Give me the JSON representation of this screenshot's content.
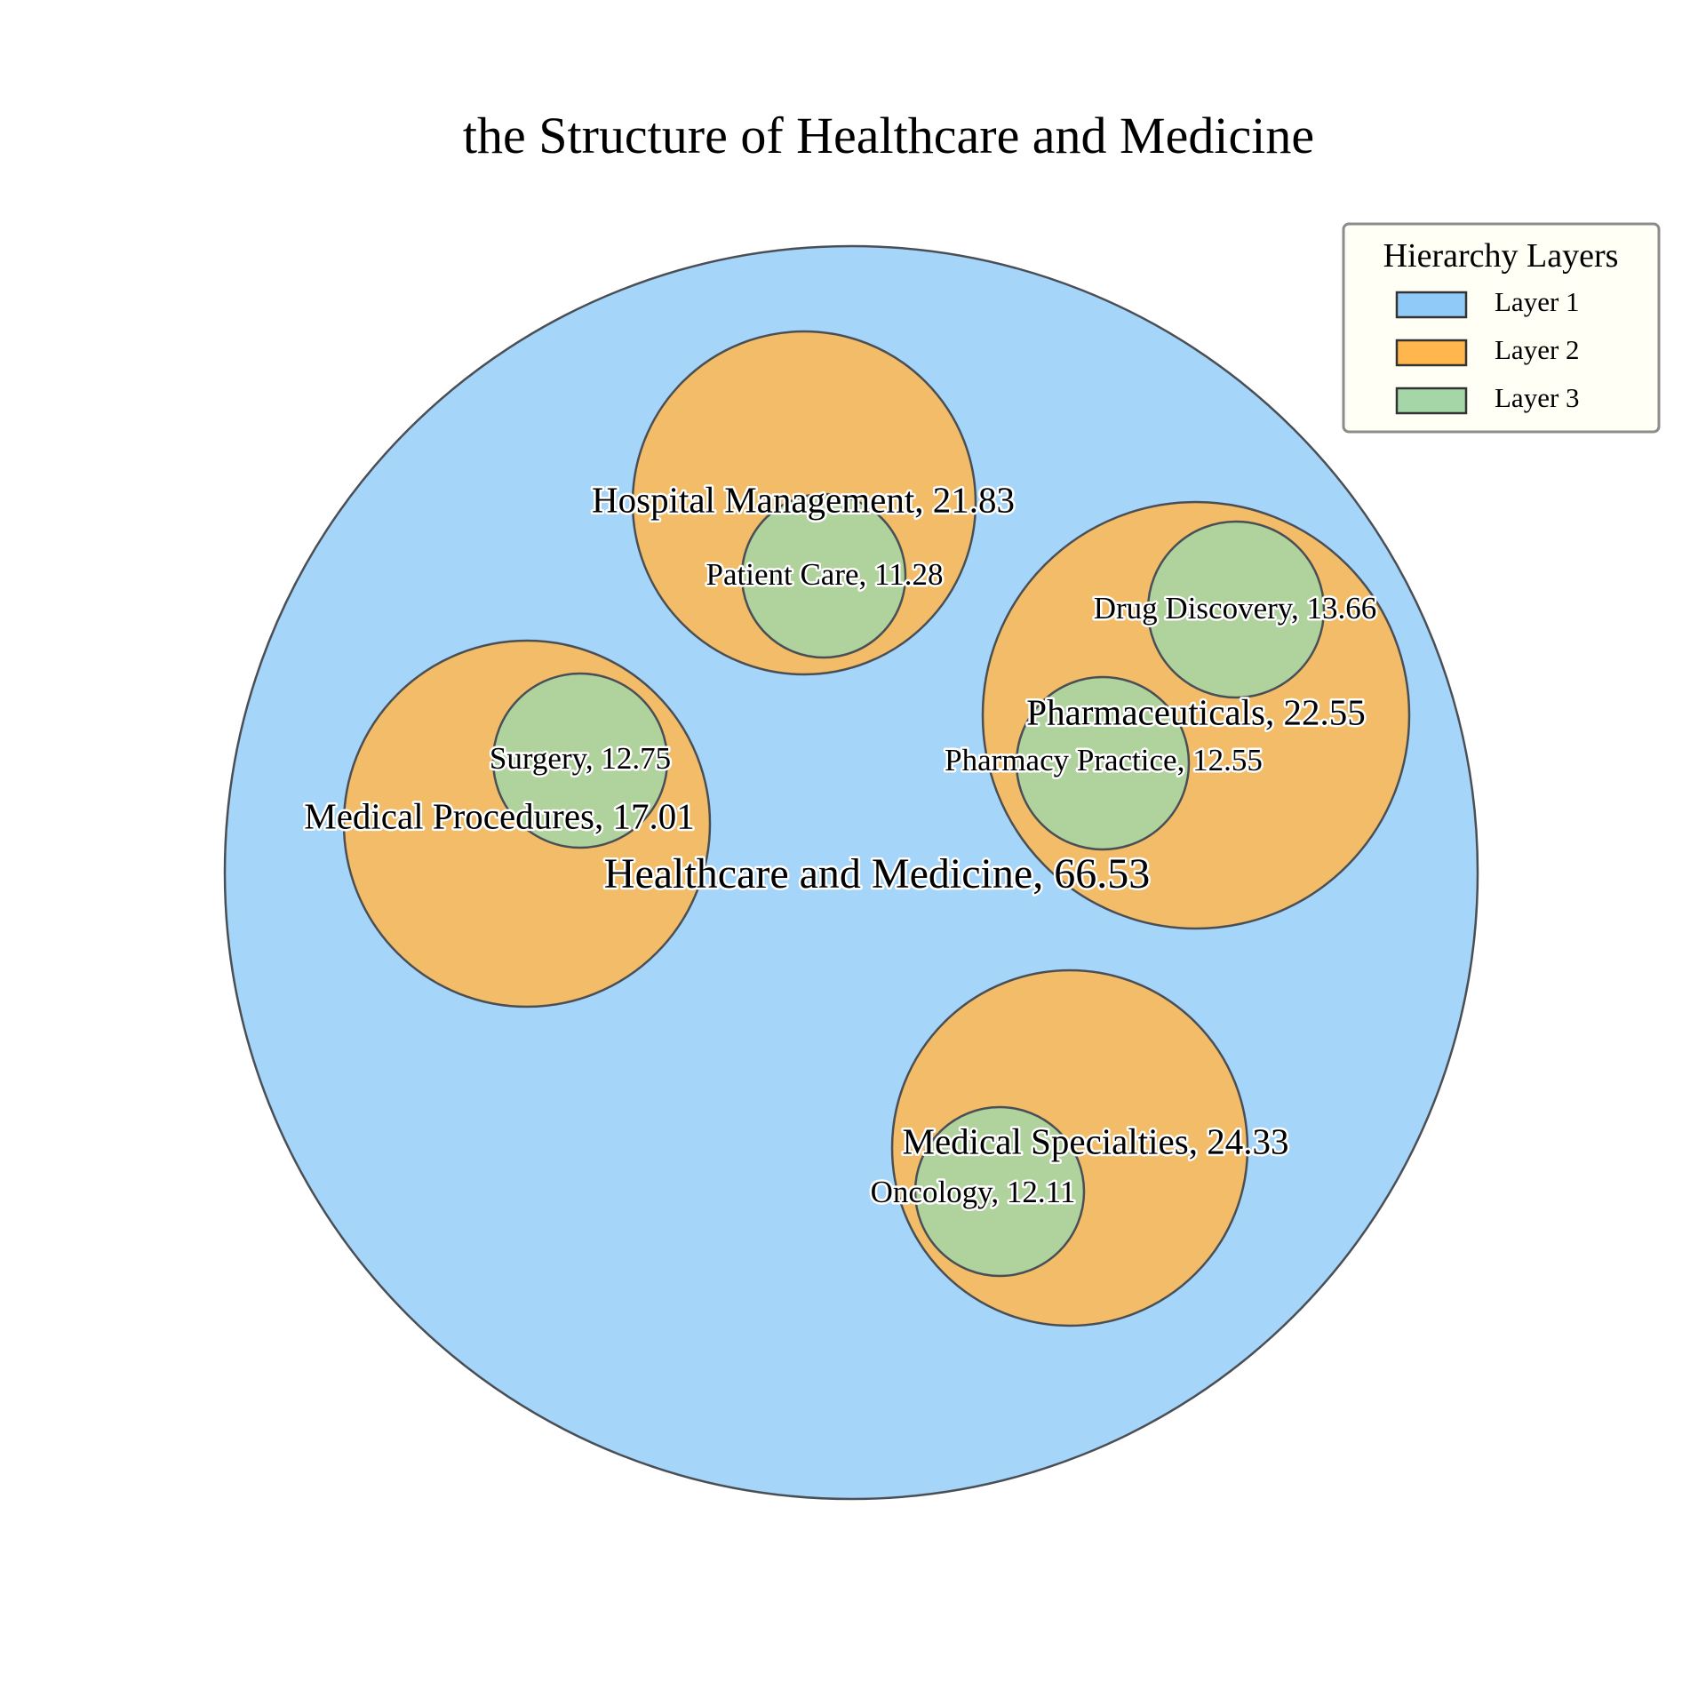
{
  "chart_data": {
    "type": "circle-packing",
    "title": "the Structure of Healthcare and Medicine",
    "nodes": [
      {
        "id": "root",
        "label": "Healthcare and Medicine, 66.53",
        "name": "Healthcare and Medicine",
        "value": 66.53,
        "layer": 1,
        "parent": null
      },
      {
        "id": "hospital-management",
        "label": "Hospital Management, 21.83",
        "name": "Hospital Management",
        "value": 21.83,
        "layer": 2,
        "parent": "root"
      },
      {
        "id": "pharmaceuticals",
        "label": "Pharmaceuticals, 22.55",
        "name": "Pharmaceuticals",
        "value": 22.55,
        "layer": 2,
        "parent": "root"
      },
      {
        "id": "medical-procedures",
        "label": "Medical Procedures, 17.01",
        "name": "Medical Procedures",
        "value": 17.01,
        "layer": 2,
        "parent": "root"
      },
      {
        "id": "medical-specialties",
        "label": "Medical Specialties, 24.33",
        "name": "Medical Specialties",
        "value": 24.33,
        "layer": 2,
        "parent": "root"
      },
      {
        "id": "patient-care",
        "label": "Patient Care, 11.28",
        "name": "Patient Care",
        "value": 11.28,
        "layer": 3,
        "parent": "hospital-management"
      },
      {
        "id": "drug-discovery",
        "label": "Drug Discovery, 13.66",
        "name": "Drug Discovery",
        "value": 13.66,
        "layer": 3,
        "parent": "pharmaceuticals"
      },
      {
        "id": "pharmacy-practice",
        "label": "Pharmacy Practice, 12.55",
        "name": "Pharmacy Practice",
        "value": 12.55,
        "layer": 3,
        "parent": "pharmaceuticals"
      },
      {
        "id": "surgery",
        "label": "Surgery, 12.75",
        "name": "Surgery",
        "value": 12.75,
        "layer": 3,
        "parent": "medical-procedures"
      },
      {
        "id": "oncology",
        "label": "Oncology, 12.11",
        "name": "Oncology",
        "value": 12.11,
        "layer": 3,
        "parent": "medical-specialties"
      }
    ],
    "legend": {
      "title": "Hierarchy Layers",
      "placement": "top-right",
      "items": [
        {
          "label": "Layer 1",
          "layer": 1
        },
        {
          "label": "Layer 2",
          "layer": 2
        },
        {
          "label": "Layer 3",
          "layer": 3
        }
      ]
    },
    "colors": {
      "layer_1": "#90CAF9",
      "layer_2": "#FFB74D",
      "layer_3": "#A5D6A7",
      "outline": "#4a4f55"
    }
  }
}
